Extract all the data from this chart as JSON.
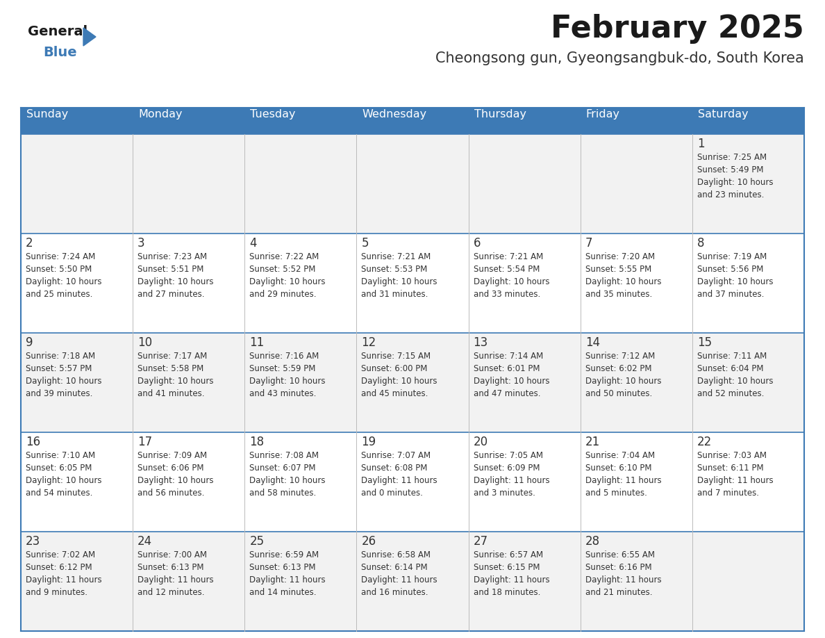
{
  "title": "February 2025",
  "subtitle": "Cheongsong gun, Gyeongsangbuk-do, South Korea",
  "header_bg": "#3d7ab5",
  "header_text_color": "#ffffff",
  "row_bg_even": "#f2f2f2",
  "row_bg_odd": "#ffffff",
  "cell_border_color": "#3d7ab5",
  "day_headers": [
    "Sunday",
    "Monday",
    "Tuesday",
    "Wednesday",
    "Thursday",
    "Friday",
    "Saturday"
  ],
  "days": [
    {
      "day": 1,
      "col": 6,
      "row": 0,
      "sunrise": "7:25 AM",
      "sunset": "5:49 PM",
      "daylight_hours": 10,
      "daylight_minutes": 23
    },
    {
      "day": 2,
      "col": 0,
      "row": 1,
      "sunrise": "7:24 AM",
      "sunset": "5:50 PM",
      "daylight_hours": 10,
      "daylight_minutes": 25
    },
    {
      "day": 3,
      "col": 1,
      "row": 1,
      "sunrise": "7:23 AM",
      "sunset": "5:51 PM",
      "daylight_hours": 10,
      "daylight_minutes": 27
    },
    {
      "day": 4,
      "col": 2,
      "row": 1,
      "sunrise": "7:22 AM",
      "sunset": "5:52 PM",
      "daylight_hours": 10,
      "daylight_minutes": 29
    },
    {
      "day": 5,
      "col": 3,
      "row": 1,
      "sunrise": "7:21 AM",
      "sunset": "5:53 PM",
      "daylight_hours": 10,
      "daylight_minutes": 31
    },
    {
      "day": 6,
      "col": 4,
      "row": 1,
      "sunrise": "7:21 AM",
      "sunset": "5:54 PM",
      "daylight_hours": 10,
      "daylight_minutes": 33
    },
    {
      "day": 7,
      "col": 5,
      "row": 1,
      "sunrise": "7:20 AM",
      "sunset": "5:55 PM",
      "daylight_hours": 10,
      "daylight_minutes": 35
    },
    {
      "day": 8,
      "col": 6,
      "row": 1,
      "sunrise": "7:19 AM",
      "sunset": "5:56 PM",
      "daylight_hours": 10,
      "daylight_minutes": 37
    },
    {
      "day": 9,
      "col": 0,
      "row": 2,
      "sunrise": "7:18 AM",
      "sunset": "5:57 PM",
      "daylight_hours": 10,
      "daylight_minutes": 39
    },
    {
      "day": 10,
      "col": 1,
      "row": 2,
      "sunrise": "7:17 AM",
      "sunset": "5:58 PM",
      "daylight_hours": 10,
      "daylight_minutes": 41
    },
    {
      "day": 11,
      "col": 2,
      "row": 2,
      "sunrise": "7:16 AM",
      "sunset": "5:59 PM",
      "daylight_hours": 10,
      "daylight_minutes": 43
    },
    {
      "day": 12,
      "col": 3,
      "row": 2,
      "sunrise": "7:15 AM",
      "sunset": "6:00 PM",
      "daylight_hours": 10,
      "daylight_minutes": 45
    },
    {
      "day": 13,
      "col": 4,
      "row": 2,
      "sunrise": "7:14 AM",
      "sunset": "6:01 PM",
      "daylight_hours": 10,
      "daylight_minutes": 47
    },
    {
      "day": 14,
      "col": 5,
      "row": 2,
      "sunrise": "7:12 AM",
      "sunset": "6:02 PM",
      "daylight_hours": 10,
      "daylight_minutes": 50
    },
    {
      "day": 15,
      "col": 6,
      "row": 2,
      "sunrise": "7:11 AM",
      "sunset": "6:04 PM",
      "daylight_hours": 10,
      "daylight_minutes": 52
    },
    {
      "day": 16,
      "col": 0,
      "row": 3,
      "sunrise": "7:10 AM",
      "sunset": "6:05 PM",
      "daylight_hours": 10,
      "daylight_minutes": 54
    },
    {
      "day": 17,
      "col": 1,
      "row": 3,
      "sunrise": "7:09 AM",
      "sunset": "6:06 PM",
      "daylight_hours": 10,
      "daylight_minutes": 56
    },
    {
      "day": 18,
      "col": 2,
      "row": 3,
      "sunrise": "7:08 AM",
      "sunset": "6:07 PM",
      "daylight_hours": 10,
      "daylight_minutes": 58
    },
    {
      "day": 19,
      "col": 3,
      "row": 3,
      "sunrise": "7:07 AM",
      "sunset": "6:08 PM",
      "daylight_hours": 11,
      "daylight_minutes": 0
    },
    {
      "day": 20,
      "col": 4,
      "row": 3,
      "sunrise": "7:05 AM",
      "sunset": "6:09 PM",
      "daylight_hours": 11,
      "daylight_minutes": 3
    },
    {
      "day": 21,
      "col": 5,
      "row": 3,
      "sunrise": "7:04 AM",
      "sunset": "6:10 PM",
      "daylight_hours": 11,
      "daylight_minutes": 5
    },
    {
      "day": 22,
      "col": 6,
      "row": 3,
      "sunrise": "7:03 AM",
      "sunset": "6:11 PM",
      "daylight_hours": 11,
      "daylight_minutes": 7
    },
    {
      "day": 23,
      "col": 0,
      "row": 4,
      "sunrise": "7:02 AM",
      "sunset": "6:12 PM",
      "daylight_hours": 11,
      "daylight_minutes": 9
    },
    {
      "day": 24,
      "col": 1,
      "row": 4,
      "sunrise": "7:00 AM",
      "sunset": "6:13 PM",
      "daylight_hours": 11,
      "daylight_minutes": 12
    },
    {
      "day": 25,
      "col": 2,
      "row": 4,
      "sunrise": "6:59 AM",
      "sunset": "6:13 PM",
      "daylight_hours": 11,
      "daylight_minutes": 14
    },
    {
      "day": 26,
      "col": 3,
      "row": 4,
      "sunrise": "6:58 AM",
      "sunset": "6:14 PM",
      "daylight_hours": 11,
      "daylight_minutes": 16
    },
    {
      "day": 27,
      "col": 4,
      "row": 4,
      "sunrise": "6:57 AM",
      "sunset": "6:15 PM",
      "daylight_hours": 11,
      "daylight_minutes": 18
    },
    {
      "day": 28,
      "col": 5,
      "row": 4,
      "sunrise": "6:55 AM",
      "sunset": "6:16 PM",
      "daylight_hours": 11,
      "daylight_minutes": 21
    }
  ],
  "logo_triangle_color": "#3d7ab5",
  "fig_width": 11.88,
  "fig_height": 9.18,
  "dpi": 100
}
